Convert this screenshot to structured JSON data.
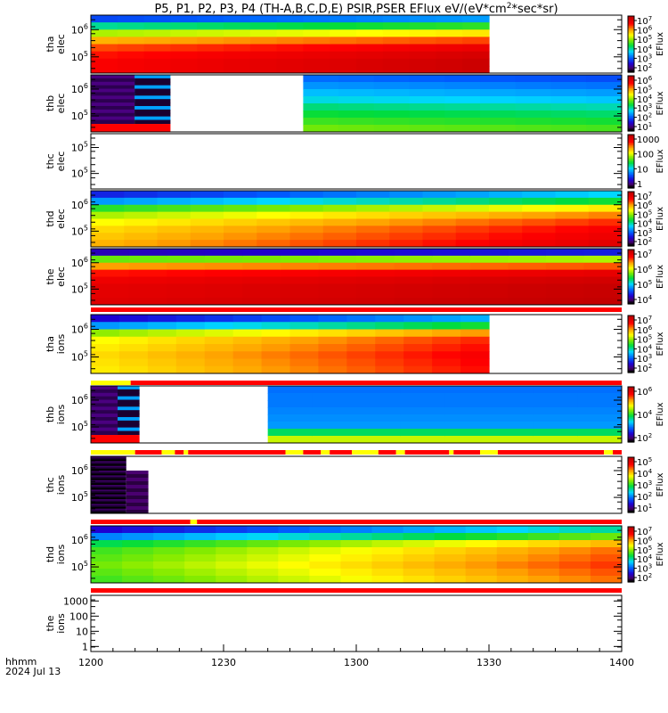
{
  "title": "P5, P1, P2, P3, P4 (TH-A,B,C,D,E) PSIR,PSER EFlux eV/(eV*cm",
  "title_sup": "2",
  "title_tail": "*sec*sr)",
  "xaxis": {
    "hhmm_label": "hhmm",
    "date_label": "2024 Jul 13",
    "ticks": [
      "1200",
      "1230",
      "1300",
      "1330",
      "1400"
    ],
    "tick_values_min": [
      0,
      30,
      60,
      90,
      120
    ],
    "range_min": [
      0,
      120
    ]
  },
  "colorbar_label": "EFlux",
  "chart_data": [
    {
      "type": "heatmap",
      "probe": "tha",
      "species": "elec",
      "ylabel_line1": "tha",
      "ylabel_line2": "elec",
      "yticks": [
        {
          "base": "10",
          "exp": "6",
          "value": 1000000
        },
        {
          "base": "10",
          "exp": "5",
          "value": 100000
        }
      ],
      "colorbar_ticks": [
        {
          "base": "10",
          "exp": "7"
        },
        {
          "base": "10",
          "exp": "6"
        },
        {
          "base": "10",
          "exp": "5"
        },
        {
          "base": "10",
          "exp": "4"
        },
        {
          "base": "10",
          "exp": "3"
        },
        {
          "base": "10",
          "exp": "2"
        }
      ],
      "clog": [
        2,
        7.5
      ],
      "data_end_min": 90,
      "rows": 8,
      "cols": 15,
      "profile": "tha_e"
    },
    {
      "type": "heatmap",
      "probe": "thb",
      "species": "elec",
      "ylabel_line1": "thb",
      "ylabel_line2": "elec",
      "yticks": [
        {
          "base": "10",
          "exp": "6",
          "value": 1000000
        },
        {
          "base": "10",
          "exp": "5",
          "value": 100000
        }
      ],
      "colorbar_ticks": [
        {
          "base": "10",
          "exp": "6"
        },
        {
          "base": "10",
          "exp": "5"
        },
        {
          "base": "10",
          "exp": "4"
        },
        {
          "base": "10",
          "exp": "3"
        },
        {
          "base": "10",
          "exp": "2"
        },
        {
          "base": "10",
          "exp": "1"
        }
      ],
      "clog": [
        0.5,
        6.5
      ],
      "gap_min": [
        18,
        43
      ],
      "rows": 8,
      "cols": 15,
      "profile": "thb_e"
    },
    {
      "type": "heatmap",
      "probe": "thc",
      "species": "elec",
      "ylabel_line1": "thc",
      "ylabel_line2": "elec",
      "yticks": [
        {
          "base": "10",
          "exp": "5",
          "value": 100000
        },
        {
          "base": "10",
          "exp": "5",
          "value": 100000
        }
      ],
      "colorbar_ticks": [
        {
          "text": "1000"
        },
        {
          "text": "100"
        },
        {
          "text": "10"
        },
        {
          "text": "1"
        }
      ],
      "clog": [
        0,
        3.5
      ],
      "empty": true,
      "profile": "empty"
    },
    {
      "type": "heatmap",
      "probe": "thd",
      "species": "elec",
      "ylabel_line1": "thd",
      "ylabel_line2": "elec",
      "yticks": [
        {
          "base": "10",
          "exp": "6",
          "value": 1000000
        },
        {
          "base": "10",
          "exp": "5",
          "value": 100000
        }
      ],
      "colorbar_ticks": [
        {
          "base": "10",
          "exp": "7"
        },
        {
          "base": "10",
          "exp": "6"
        },
        {
          "base": "10",
          "exp": "5"
        },
        {
          "base": "10",
          "exp": "4"
        },
        {
          "base": "10",
          "exp": "3"
        },
        {
          "base": "10",
          "exp": "2"
        }
      ],
      "clog": [
        2,
        7.5
      ],
      "rows": 8,
      "cols": 16,
      "profile": "thd_e"
    },
    {
      "type": "heatmap",
      "probe": "the",
      "species": "elec",
      "ylabel_line1": "the",
      "ylabel_line2": "elec",
      "yticks": [
        {
          "base": "10",
          "exp": "6",
          "value": 1000000
        },
        {
          "base": "10",
          "exp": "5",
          "value": 100000
        }
      ],
      "colorbar_ticks": [
        {
          "base": "10",
          "exp": "7"
        },
        {
          "base": "10",
          "exp": "6"
        },
        {
          "base": "10",
          "exp": "5"
        },
        {
          "base": "10",
          "exp": "4"
        }
      ],
      "clog": [
        3.5,
        7.5
      ],
      "rows": 8,
      "cols": 14,
      "profile": "the_e"
    },
    {
      "type": "heatmap",
      "probe": "tha",
      "species": "ions",
      "ylabel_line1": "tha",
      "ylabel_line2": "ions",
      "yticks": [
        {
          "base": "10",
          "exp": "6",
          "value": 1000000
        },
        {
          "base": "10",
          "exp": "5",
          "value": 100000
        }
      ],
      "colorbar_ticks": [
        {
          "base": "10",
          "exp": "7"
        },
        {
          "base": "10",
          "exp": "6"
        },
        {
          "base": "10",
          "exp": "5"
        },
        {
          "base": "10",
          "exp": "4"
        },
        {
          "base": "10",
          "exp": "3"
        },
        {
          "base": "10",
          "exp": "2"
        }
      ],
      "clog": [
        1.5,
        7.5
      ],
      "data_end_min": 90,
      "rows": 8,
      "cols": 14,
      "profile": "tha_i"
    },
    {
      "type": "heatmap",
      "probe": "thb",
      "species": "ions",
      "ylabel_line1": "thb",
      "ylabel_line2": "ions",
      "yticks": [
        {
          "base": "10",
          "exp": "6",
          "value": 1000000
        },
        {
          "base": "10",
          "exp": "5",
          "value": 100000
        }
      ],
      "colorbar_ticks": [
        {
          "base": "10",
          "exp": "6"
        },
        {
          "base": "10",
          "exp": "4"
        },
        {
          "base": "10",
          "exp": "2"
        }
      ],
      "clog": [
        1,
        6.8
      ],
      "gap_min": [
        11,
        35
      ],
      "rows": 8,
      "cols": 12,
      "profile": "thb_i"
    },
    {
      "type": "heatmap",
      "probe": "thc",
      "species": "ions",
      "ylabel_line1": "thc",
      "ylabel_line2": "ions",
      "yticks": [
        {
          "base": "10",
          "exp": "6",
          "value": 1000000
        },
        {
          "base": "10",
          "exp": "5",
          "value": 100000
        }
      ],
      "colorbar_ticks": [
        {
          "base": "10",
          "exp": "5"
        },
        {
          "base": "10",
          "exp": "4"
        },
        {
          "base": "10",
          "exp": "3"
        },
        {
          "base": "10",
          "exp": "2"
        },
        {
          "base": "10",
          "exp": "1"
        }
      ],
      "clog": [
        0.3,
        5.3
      ],
      "data_end_min": 13,
      "profile": "thc_i"
    },
    {
      "type": "heatmap",
      "probe": "thd",
      "species": "ions",
      "ylabel_line1": "thd",
      "ylabel_line2": "ions",
      "yticks": [
        {
          "base": "10",
          "exp": "6",
          "value": 1000000
        },
        {
          "base": "10",
          "exp": "5",
          "value": 100000
        }
      ],
      "colorbar_ticks": [
        {
          "base": "10",
          "exp": "7"
        },
        {
          "base": "10",
          "exp": "6"
        },
        {
          "base": "10",
          "exp": "5"
        },
        {
          "base": "10",
          "exp": "4"
        },
        {
          "base": "10",
          "exp": "3"
        },
        {
          "base": "10",
          "exp": "2"
        }
      ],
      "clog": [
        1.5,
        7.5
      ],
      "rows": 8,
      "cols": 17,
      "profile": "thd_i"
    },
    {
      "type": "heatmap",
      "probe": "the",
      "species": "ions",
      "ylabel_line1": "the",
      "ylabel_line2": "ions",
      "yticks": [
        {
          "text": "1000",
          "value": 1000
        },
        {
          "text": "100",
          "value": 100
        },
        {
          "text": "10",
          "value": 10
        },
        {
          "text": "1",
          "value": 1
        }
      ],
      "empty": true,
      "no_colorbar": true,
      "profile": "empty"
    }
  ],
  "mode_bars": [
    {
      "after_panel": 4,
      "segments": [
        {
          "start_min": 0,
          "end_min": 120,
          "color": "#ff0000"
        }
      ]
    },
    {
      "after_panel": 5,
      "segments": [
        {
          "start_min": 0,
          "end_min": 9,
          "color": "#ffff00"
        },
        {
          "start_min": 9,
          "end_min": 120,
          "color": "#ff0000"
        }
      ]
    },
    {
      "after_panel": 6,
      "segments": [
        {
          "start_min": 0,
          "end_min": 10,
          "color": "#ffff00"
        },
        {
          "start_min": 10,
          "end_min": 16,
          "color": "#ff0000"
        },
        {
          "start_min": 16,
          "end_min": 19,
          "color": "#ffff00"
        },
        {
          "start_min": 19,
          "end_min": 21,
          "color": "#ff0000"
        },
        {
          "start_min": 21,
          "end_min": 22,
          "color": "#ffff00"
        },
        {
          "start_min": 22,
          "end_min": 44,
          "color": "#ff0000"
        },
        {
          "start_min": 44,
          "end_min": 48,
          "color": "#ffff00"
        },
        {
          "start_min": 48,
          "end_min": 52,
          "color": "#ff0000"
        },
        {
          "start_min": 52,
          "end_min": 54,
          "color": "#ffff00"
        },
        {
          "start_min": 54,
          "end_min": 59,
          "color": "#ff0000"
        },
        {
          "start_min": 59,
          "end_min": 65,
          "color": "#ffff00"
        },
        {
          "start_min": 65,
          "end_min": 69,
          "color": "#ff0000"
        },
        {
          "start_min": 69,
          "end_min": 71,
          "color": "#ffff00"
        },
        {
          "start_min": 71,
          "end_min": 81,
          "color": "#ff0000"
        },
        {
          "start_min": 81,
          "end_min": 82,
          "color": "#ffff00"
        },
        {
          "start_min": 82,
          "end_min": 88,
          "color": "#ff0000"
        },
        {
          "start_min": 88,
          "end_min": 92,
          "color": "#ffff00"
        },
        {
          "start_min": 92,
          "end_min": 116,
          "color": "#ff0000"
        },
        {
          "start_min": 116,
          "end_min": 118,
          "color": "#ffff00"
        },
        {
          "start_min": 118,
          "end_min": 120,
          "color": "#ff0000"
        }
      ]
    },
    {
      "after_panel": 7,
      "segments": [
        {
          "start_min": 0,
          "end_min": 22.5,
          "color": "#ff0000"
        },
        {
          "start_min": 22.5,
          "end_min": 24,
          "color": "#ffff00"
        },
        {
          "start_min": 24,
          "end_min": 120,
          "color": "#ff0000"
        }
      ]
    },
    {
      "after_panel": 8,
      "segments": [
        {
          "start_min": 0,
          "end_min": 120,
          "color": "#ff0000"
        }
      ]
    }
  ]
}
